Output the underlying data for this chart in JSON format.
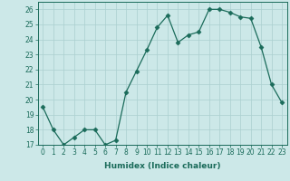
{
  "x": [
    0,
    1,
    2,
    3,
    4,
    5,
    6,
    7,
    8,
    9,
    10,
    11,
    12,
    13,
    14,
    15,
    16,
    17,
    18,
    19,
    20,
    21,
    22,
    23
  ],
  "y": [
    19.5,
    18.0,
    17.0,
    17.5,
    18.0,
    18.0,
    17.0,
    17.3,
    20.5,
    21.9,
    23.3,
    24.8,
    25.6,
    23.8,
    24.3,
    24.5,
    26.0,
    26.0,
    25.8,
    25.5,
    25.4,
    23.5,
    21.0,
    19.8
  ],
  "line_color": "#1a6b5a",
  "marker": "D",
  "marker_size": 2.5,
  "bg_color": "#cce8e8",
  "grid_color": "#aacfcf",
  "xlabel": "Humidex (Indice chaleur)",
  "ylim": [
    17,
    26.5
  ],
  "xlim": [
    -0.5,
    23.5
  ],
  "yticks": [
    17,
    18,
    19,
    20,
    21,
    22,
    23,
    24,
    25,
    26
  ],
  "xticks": [
    0,
    1,
    2,
    3,
    4,
    5,
    6,
    7,
    8,
    9,
    10,
    11,
    12,
    13,
    14,
    15,
    16,
    17,
    18,
    19,
    20,
    21,
    22,
    23
  ],
  "tick_color": "#1a6b5a",
  "label_fontsize": 6.5,
  "tick_fontsize": 5.5
}
